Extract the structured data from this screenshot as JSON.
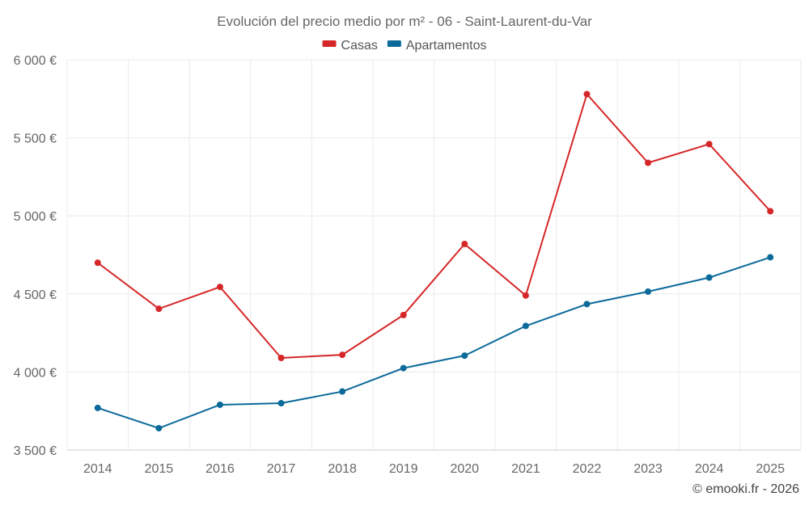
{
  "chart_data": {
    "type": "line",
    "title": "Evolución del precio medio por m² - 06 - Saint-Laurent-du-Var",
    "categories": [
      "2014",
      "2015",
      "2016",
      "2017",
      "2018",
      "2019",
      "2020",
      "2021",
      "2022",
      "2023",
      "2024",
      "2025"
    ],
    "series": [
      {
        "name": "Casas",
        "color": "#d62728",
        "values": [
          4700,
          4405,
          4545,
          4090,
          4110,
          4365,
          4820,
          4490,
          5780,
          5340,
          5460,
          5030
        ]
      },
      {
        "name": "Apartamentos",
        "color": "#0b6a9a",
        "values": [
          3770,
          3640,
          3790,
          3800,
          3875,
          4025,
          4105,
          4295,
          4435,
          4515,
          4605,
          4735
        ]
      }
    ],
    "yticks": [
      3500,
      4000,
      4500,
      5000,
      5500,
      6000
    ],
    "ytick_labels": [
      "3 500 €",
      "4 000 €",
      "4 500 €",
      "5 000 €",
      "5 500 €",
      "6 000 €"
    ],
    "ylim": [
      3500,
      6000
    ],
    "xlabel": "",
    "ylabel": "",
    "grid": true,
    "legend_position": "top-center"
  },
  "credit": "© emooki.fr - 2026"
}
